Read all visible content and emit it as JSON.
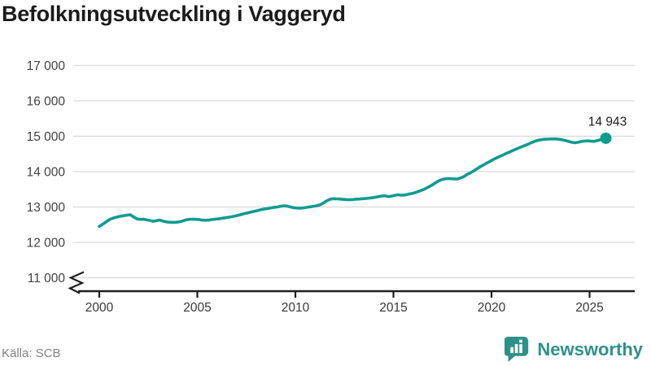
{
  "title": "Befolkningsutveckling i Vaggeryd",
  "source": "Källa: SCB",
  "branding": {
    "name": "Newsworthy",
    "color": "#2e9189"
  },
  "chart_data": {
    "type": "line",
    "title": "Befolkningsutveckling i Vaggeryd",
    "xlabel": "",
    "ylabel": "",
    "grid": "horizontal",
    "legend": "none",
    "line_color": "#109b8f",
    "axis_color": "#1f1f1f",
    "grid_color": "#d9d9d9",
    "y_axis_break": true,
    "ylim": [
      11000,
      17000
    ],
    "xlim": [
      2000,
      2026
    ],
    "y_ticks": [
      {
        "value": 17000,
        "label": "17 000"
      },
      {
        "value": 16000,
        "label": "16 000"
      },
      {
        "value": 15000,
        "label": "15 000"
      },
      {
        "value": 14000,
        "label": "14 000"
      },
      {
        "value": 13000,
        "label": "13 000"
      },
      {
        "value": 12000,
        "label": "12 000"
      },
      {
        "value": 11000,
        "label": "11 000"
      }
    ],
    "x_ticks": [
      {
        "value": 2000,
        "label": "2000"
      },
      {
        "value": 2005,
        "label": "2005"
      },
      {
        "value": 2010,
        "label": "2010"
      },
      {
        "value": 2015,
        "label": "2015"
      },
      {
        "value": 2020,
        "label": "2020"
      },
      {
        "value": 2025,
        "label": "2025"
      }
    ],
    "end_label": "14 943",
    "end_value": 14943,
    "series": [
      {
        "name": "Folkmängd i Vaggeryd",
        "points": [
          [
            2000.0,
            12450
          ],
          [
            2000.25,
            12540
          ],
          [
            2000.42,
            12610
          ],
          [
            2000.58,
            12660
          ],
          [
            2000.75,
            12695
          ],
          [
            2000.92,
            12720
          ],
          [
            2001.08,
            12740
          ],
          [
            2001.25,
            12755
          ],
          [
            2001.42,
            12770
          ],
          [
            2001.58,
            12780
          ],
          [
            2001.75,
            12720
          ],
          [
            2001.92,
            12665
          ],
          [
            2002.08,
            12650
          ],
          [
            2002.25,
            12655
          ],
          [
            2002.42,
            12635
          ],
          [
            2002.58,
            12620
          ],
          [
            2002.75,
            12595
          ],
          [
            2002.92,
            12615
          ],
          [
            2003.08,
            12630
          ],
          [
            2003.25,
            12600
          ],
          [
            2003.42,
            12580
          ],
          [
            2003.58,
            12570
          ],
          [
            2003.75,
            12565
          ],
          [
            2003.92,
            12570
          ],
          [
            2004.08,
            12580
          ],
          [
            2004.25,
            12605
          ],
          [
            2004.42,
            12635
          ],
          [
            2004.58,
            12650
          ],
          [
            2004.75,
            12655
          ],
          [
            2004.92,
            12650
          ],
          [
            2005.08,
            12645
          ],
          [
            2005.25,
            12630
          ],
          [
            2005.42,
            12625
          ],
          [
            2005.58,
            12630
          ],
          [
            2005.75,
            12645
          ],
          [
            2005.92,
            12655
          ],
          [
            2006.08,
            12665
          ],
          [
            2006.25,
            12680
          ],
          [
            2006.42,
            12695
          ],
          [
            2006.58,
            12710
          ],
          [
            2006.75,
            12725
          ],
          [
            2006.92,
            12745
          ],
          [
            2007.08,
            12765
          ],
          [
            2007.25,
            12790
          ],
          [
            2007.42,
            12815
          ],
          [
            2007.58,
            12835
          ],
          [
            2007.75,
            12860
          ],
          [
            2007.92,
            12880
          ],
          [
            2008.08,
            12900
          ],
          [
            2008.25,
            12925
          ],
          [
            2008.42,
            12945
          ],
          [
            2008.58,
            12955
          ],
          [
            2008.75,
            12975
          ],
          [
            2008.92,
            12990
          ],
          [
            2009.08,
            13000
          ],
          [
            2009.25,
            13020
          ],
          [
            2009.42,
            13035
          ],
          [
            2009.58,
            13025
          ],
          [
            2009.75,
            13000
          ],
          [
            2009.92,
            12980
          ],
          [
            2010.08,
            12970
          ],
          [
            2010.25,
            12965
          ],
          [
            2010.42,
            12975
          ],
          [
            2010.58,
            12990
          ],
          [
            2010.75,
            13005
          ],
          [
            2010.92,
            13020
          ],
          [
            2011.08,
            13035
          ],
          [
            2011.25,
            13060
          ],
          [
            2011.42,
            13110
          ],
          [
            2011.58,
            13170
          ],
          [
            2011.75,
            13215
          ],
          [
            2011.92,
            13235
          ],
          [
            2012.08,
            13230
          ],
          [
            2012.25,
            13225
          ],
          [
            2012.42,
            13215
          ],
          [
            2012.58,
            13210
          ],
          [
            2012.75,
            13205
          ],
          [
            2012.92,
            13210
          ],
          [
            2013.08,
            13220
          ],
          [
            2013.25,
            13225
          ],
          [
            2013.42,
            13235
          ],
          [
            2013.58,
            13240
          ],
          [
            2013.75,
            13250
          ],
          [
            2013.92,
            13260
          ],
          [
            2014.08,
            13275
          ],
          [
            2014.25,
            13295
          ],
          [
            2014.42,
            13310
          ],
          [
            2014.58,
            13315
          ],
          [
            2014.75,
            13295
          ],
          [
            2014.92,
            13310
          ],
          [
            2015.08,
            13330
          ],
          [
            2015.25,
            13345
          ],
          [
            2015.42,
            13330
          ],
          [
            2015.58,
            13340
          ],
          [
            2015.75,
            13360
          ],
          [
            2015.92,
            13380
          ],
          [
            2016.08,
            13400
          ],
          [
            2016.25,
            13435
          ],
          [
            2016.42,
            13470
          ],
          [
            2016.58,
            13505
          ],
          [
            2016.75,
            13555
          ],
          [
            2016.92,
            13605
          ],
          [
            2017.08,
            13660
          ],
          [
            2017.25,
            13720
          ],
          [
            2017.42,
            13765
          ],
          [
            2017.58,
            13790
          ],
          [
            2017.75,
            13805
          ],
          [
            2017.92,
            13800
          ],
          [
            2018.08,
            13795
          ],
          [
            2018.25,
            13790
          ],
          [
            2018.42,
            13820
          ],
          [
            2018.58,
            13855
          ],
          [
            2018.75,
            13920
          ],
          [
            2018.92,
            13965
          ],
          [
            2019.08,
            14015
          ],
          [
            2019.25,
            14075
          ],
          [
            2019.42,
            14135
          ],
          [
            2019.58,
            14185
          ],
          [
            2019.75,
            14240
          ],
          [
            2019.92,
            14290
          ],
          [
            2020.08,
            14340
          ],
          [
            2020.25,
            14385
          ],
          [
            2020.42,
            14430
          ],
          [
            2020.58,
            14470
          ],
          [
            2020.75,
            14515
          ],
          [
            2020.92,
            14555
          ],
          [
            2021.08,
            14595
          ],
          [
            2021.25,
            14635
          ],
          [
            2021.42,
            14675
          ],
          [
            2021.58,
            14710
          ],
          [
            2021.75,
            14750
          ],
          [
            2021.92,
            14790
          ],
          [
            2022.08,
            14830
          ],
          [
            2022.25,
            14865
          ],
          [
            2022.42,
            14890
          ],
          [
            2022.58,
            14905
          ],
          [
            2022.75,
            14915
          ],
          [
            2022.92,
            14920
          ],
          [
            2023.08,
            14925
          ],
          [
            2023.25,
            14925
          ],
          [
            2023.42,
            14915
          ],
          [
            2023.58,
            14900
          ],
          [
            2023.75,
            14880
          ],
          [
            2023.92,
            14855
          ],
          [
            2024.08,
            14830
          ],
          [
            2024.25,
            14815
          ],
          [
            2024.42,
            14830
          ],
          [
            2024.58,
            14850
          ],
          [
            2024.75,
            14865
          ],
          [
            2024.92,
            14870
          ],
          [
            2025.08,
            14860
          ],
          [
            2025.25,
            14855
          ],
          [
            2025.42,
            14880
          ],
          [
            2025.58,
            14905
          ],
          [
            2025.83,
            14943
          ]
        ]
      }
    ]
  }
}
